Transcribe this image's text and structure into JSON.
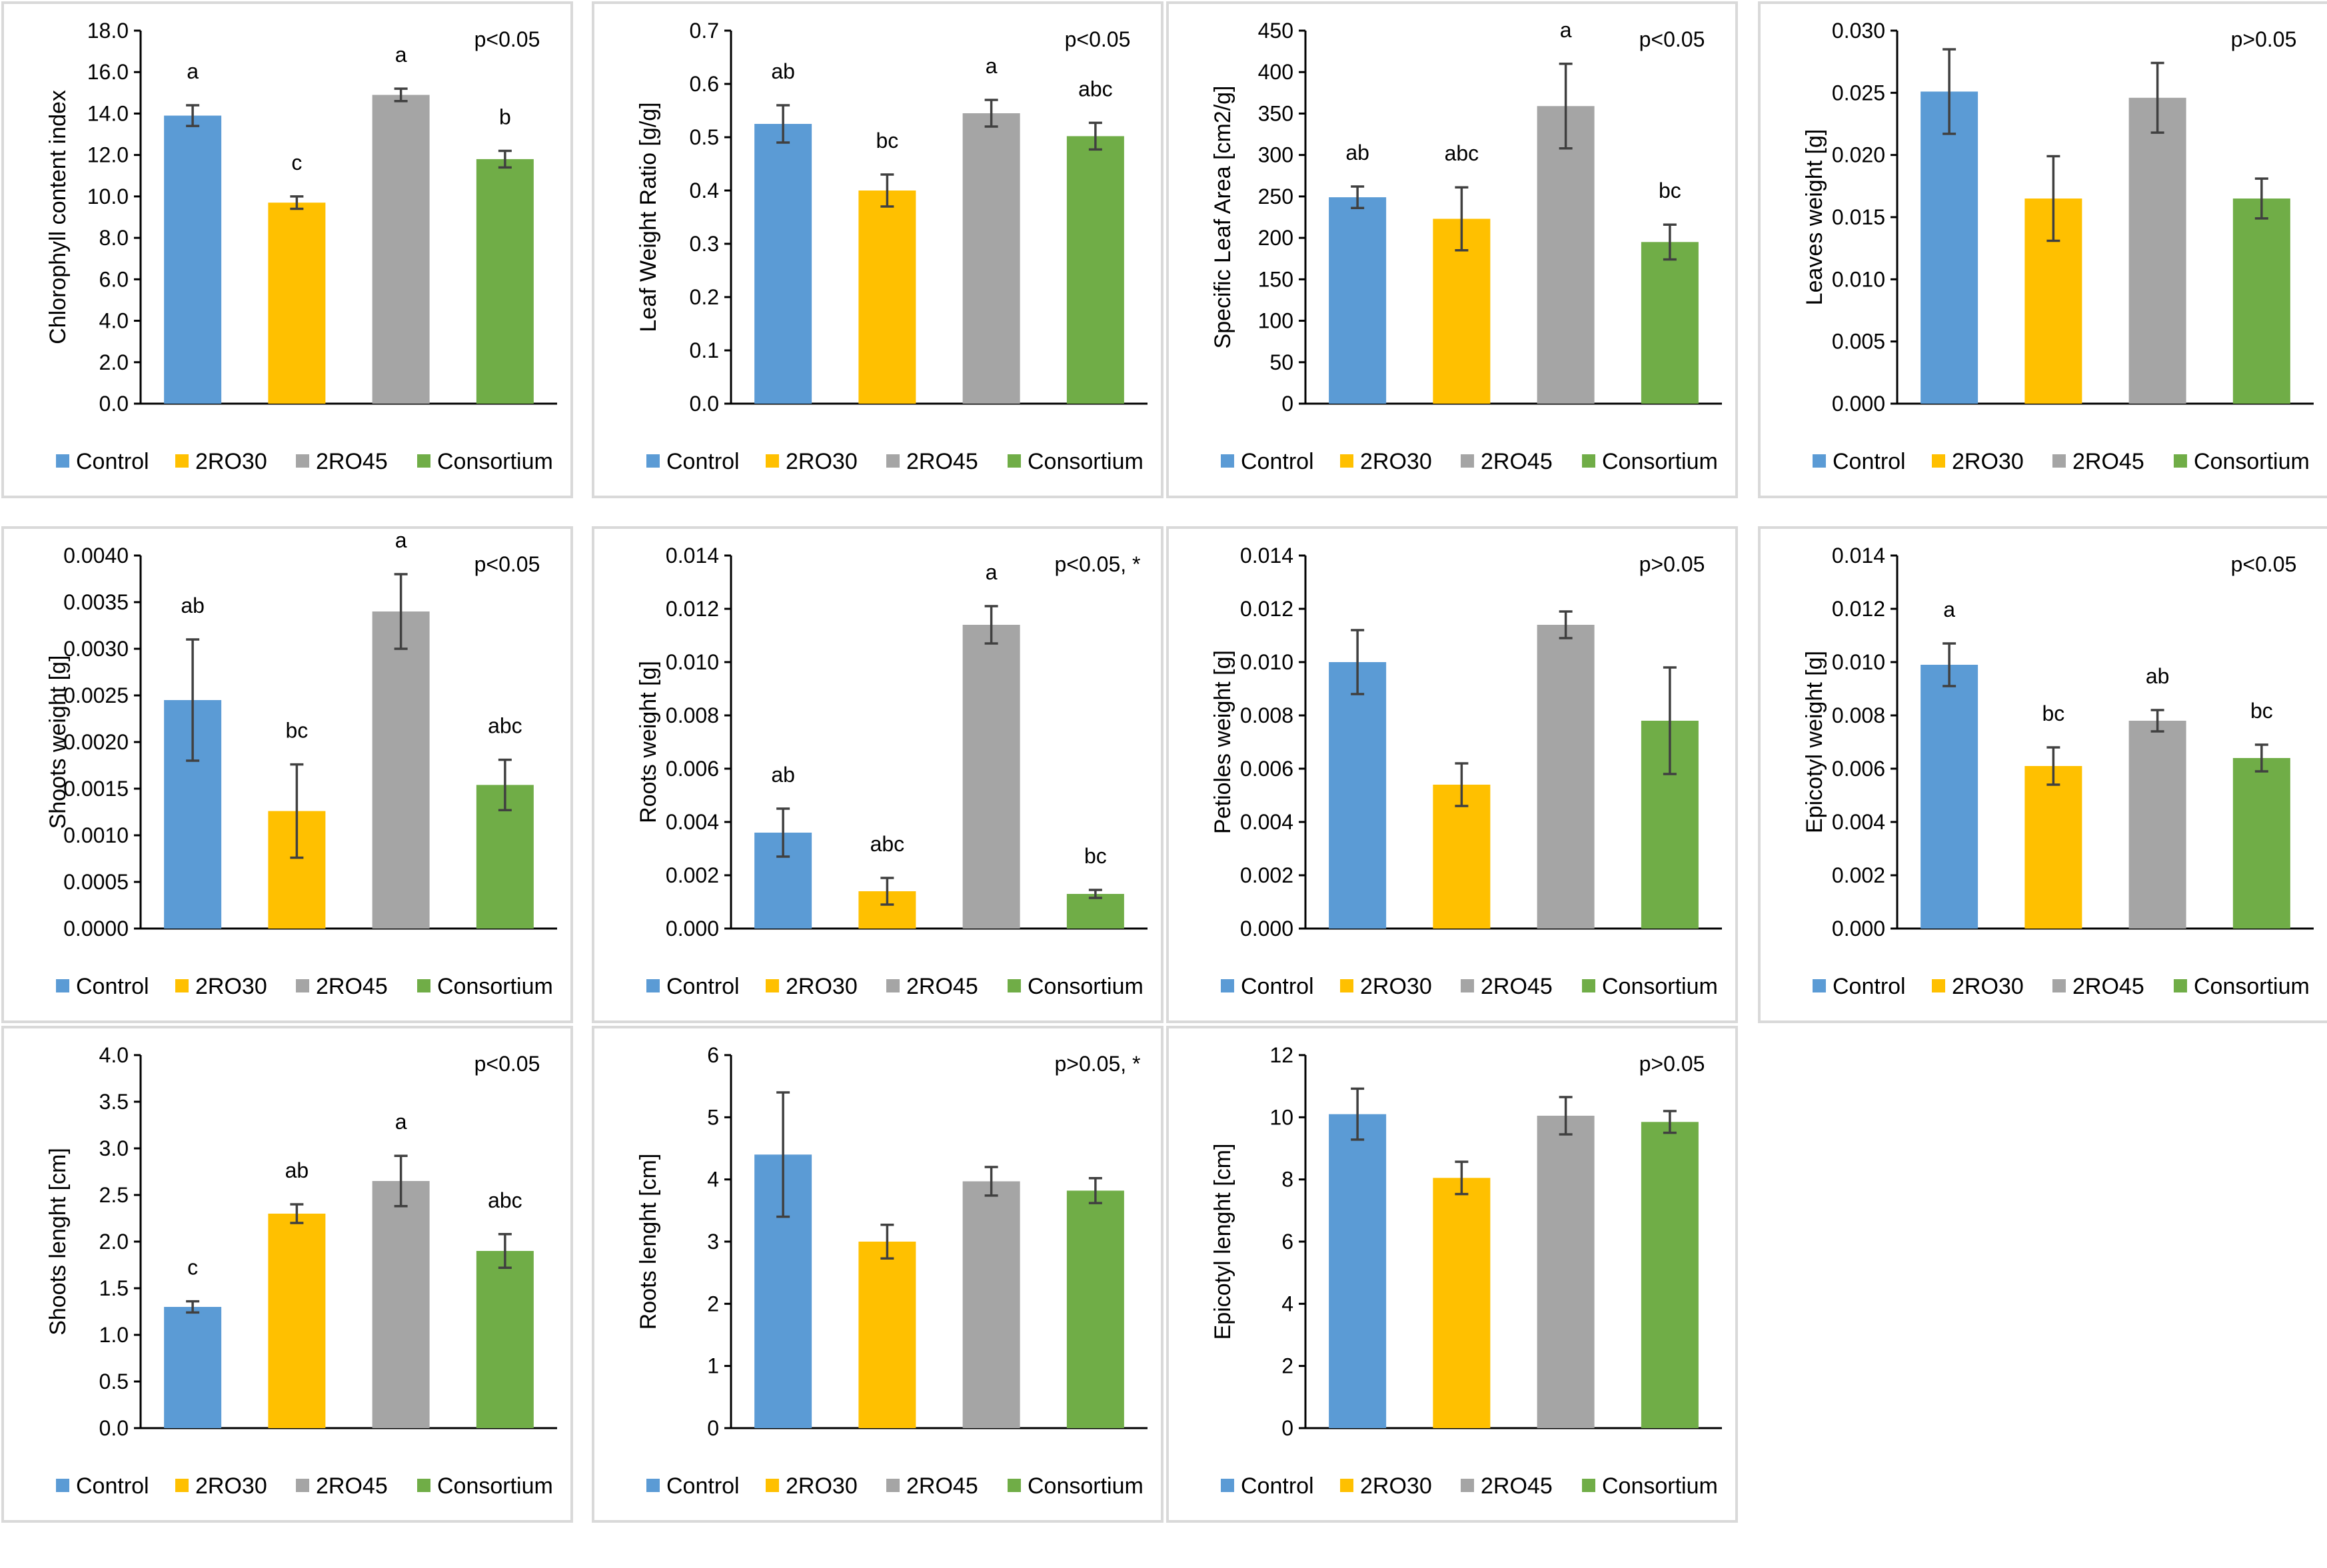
{
  "chart_data": [
    {
      "type": "bar",
      "categories": [
        "Control",
        "2RO30",
        "2RO45",
        "Consortium"
      ],
      "values": [
        13.9,
        9.7,
        14.9,
        11.8
      ],
      "errors": [
        0.5,
        0.3,
        0.3,
        0.4
      ],
      "letters": [
        "a",
        "c",
        "a",
        "b"
      ],
      "ylabel": "Chlorophyll content index",
      "significance": "p<0.05",
      "ylim": [
        0,
        18
      ],
      "ticks": [
        "0.0",
        "2.0",
        "4.0",
        "6.0",
        "8.0",
        "10.0",
        "12.0",
        "14.0",
        "16.0",
        "18.0"
      ]
    },
    {
      "type": "bar",
      "categories": [
        "Control",
        "2RO30",
        "2RO45",
        "Consortium"
      ],
      "values": [
        0.525,
        0.4,
        0.545,
        0.502
      ],
      "errors": [
        0.035,
        0.03,
        0.025,
        0.025
      ],
      "letters": [
        "ab",
        "bc",
        "a",
        "abc"
      ],
      "ylabel": "Leaf Weight Ratio [g/g]",
      "significance": "p<0.05",
      "ylim": [
        0,
        0.7
      ],
      "ticks": [
        "0.0",
        "0.1",
        "0.2",
        "0.3",
        "0.4",
        "0.5",
        "0.6",
        "0.7"
      ]
    },
    {
      "type": "bar",
      "categories": [
        "Control",
        "2RO30",
        "2RO45",
        "Consortium"
      ],
      "values": [
        249,
        223,
        359,
        195
      ],
      "errors": [
        13,
        38,
        51,
        21
      ],
      "letters": [
        "ab",
        "abc",
        "a",
        "bc"
      ],
      "ylabel": "Specific Leaf Area [cm2/g]",
      "significance": "p<0.05",
      "ylim": [
        0,
        450
      ],
      "ticks": [
        "0",
        "50",
        "100",
        "150",
        "200",
        "250",
        "300",
        "350",
        "400",
        "450"
      ]
    },
    {
      "type": "bar",
      "categories": [
        "Control",
        "2RO30",
        "2RO45",
        "Consortium"
      ],
      "values": [
        0.0251,
        0.0165,
        0.0246,
        0.0165
      ],
      "errors": [
        0.0034,
        0.0034,
        0.0028,
        0.0016
      ],
      "letters": [
        "",
        "",
        "",
        ""
      ],
      "ylabel": "Leaves weight [g]",
      "significance": "p>0.05",
      "ylim": [
        0,
        0.03
      ],
      "ticks": [
        "0.000",
        "0.005",
        "0.010",
        "0.015",
        "0.020",
        "0.025",
        "0.030"
      ]
    },
    {
      "type": "bar",
      "categories": [
        "Control",
        "2RO30",
        "2RO45",
        "Consortium"
      ],
      "values": [
        0.00245,
        0.00126,
        0.0034,
        0.00154
      ],
      "errors": [
        0.00065,
        0.0005,
        0.0004,
        0.00027
      ],
      "letters": [
        "ab",
        "bc",
        "a",
        "abc"
      ],
      "ylabel": "Shoots weight [g]",
      "significance": "p<0.05",
      "ylim": [
        0,
        0.004
      ],
      "ticks": [
        "0.0000",
        "0.0005",
        "0.0010",
        "0.0015",
        "0.0020",
        "0.0025",
        "0.0030",
        "0.0035",
        "0.0040"
      ]
    },
    {
      "type": "bar",
      "categories": [
        "Control",
        "2RO30",
        "2RO45",
        "Consortium"
      ],
      "values": [
        0.0036,
        0.0014,
        0.0114,
        0.0013
      ],
      "errors": [
        0.0009,
        0.0005,
        0.0007,
        0.00015
      ],
      "letters": [
        "ab",
        "abc",
        "a",
        "bc"
      ],
      "ylabel": "Roots weight [g]",
      "significance": "p<0.05, *",
      "ylim": [
        0,
        0.014
      ],
      "ticks": [
        "0.000",
        "0.002",
        "0.004",
        "0.006",
        "0.008",
        "0.010",
        "0.012",
        "0.014"
      ]
    },
    {
      "type": "bar",
      "categories": [
        "Control",
        "2RO30",
        "2RO45",
        "Consortium"
      ],
      "values": [
        0.01,
        0.0054,
        0.0114,
        0.0078
      ],
      "errors": [
        0.0012,
        0.0008,
        0.0005,
        0.002
      ],
      "letters": [
        "",
        "",
        "",
        ""
      ],
      "ylabel": "Petioles weight [g]",
      "significance": "p>0.05",
      "ylim": [
        0,
        0.014
      ],
      "ticks": [
        "0.000",
        "0.002",
        "0.004",
        "0.006",
        "0.008",
        "0.010",
        "0.012",
        "0.014"
      ]
    },
    {
      "type": "bar",
      "categories": [
        "Control",
        "2RO30",
        "2RO45",
        "Consortium"
      ],
      "values": [
        0.0099,
        0.0061,
        0.0078,
        0.0064
      ],
      "errors": [
        0.0008,
        0.0007,
        0.0004,
        0.0005
      ],
      "letters": [
        "a",
        "bc",
        "ab",
        "bc"
      ],
      "ylabel": "Epicotyl weight [g]",
      "significance": "p<0.05",
      "ylim": [
        0,
        0.014
      ],
      "ticks": [
        "0.000",
        "0.002",
        "0.004",
        "0.006",
        "0.008",
        "0.010",
        "0.012",
        "0.014"
      ]
    },
    {
      "type": "bar",
      "categories": [
        "Control",
        "2RO30",
        "2RO45",
        "Consortium"
      ],
      "values": [
        1.3,
        2.3,
        2.65,
        1.9
      ],
      "errors": [
        0.06,
        0.1,
        0.27,
        0.18
      ],
      "letters": [
        "c",
        "ab",
        "a",
        "abc"
      ],
      "ylabel": "Shoots lenght [cm]",
      "significance": "p<0.05",
      "ylim": [
        0,
        4
      ],
      "ticks": [
        "0.0",
        "0.5",
        "1.0",
        "1.5",
        "2.0",
        "2.5",
        "3.0",
        "3.5",
        "4.0"
      ]
    },
    {
      "type": "bar",
      "categories": [
        "Control",
        "2RO30",
        "2RO45",
        "Consortium"
      ],
      "values": [
        4.4,
        3.0,
        3.97,
        3.82
      ],
      "errors": [
        1.0,
        0.27,
        0.23,
        0.2
      ],
      "letters": [
        "",
        "",
        "",
        ""
      ],
      "ylabel": "Roots lenght [cm]",
      "significance": "p>0.05, *",
      "ylim": [
        0,
        6
      ],
      "ticks": [
        "0",
        "1",
        "2",
        "3",
        "4",
        "5",
        "6"
      ]
    },
    {
      "type": "bar",
      "categories": [
        "Control",
        "2RO30",
        "2RO45",
        "Consortium"
      ],
      "values": [
        10.1,
        8.05,
        10.05,
        9.85
      ],
      "errors": [
        0.82,
        0.52,
        0.6,
        0.35
      ],
      "letters": [
        "",
        "",
        "",
        ""
      ],
      "ylabel": "Epicotyl lenght [cm]",
      "significance": "p>0.05",
      "ylim": [
        0,
        12
      ],
      "ticks": [
        "0",
        "2",
        "4",
        "6",
        "8",
        "10",
        "12"
      ]
    }
  ],
  "legend": [
    "Control",
    "2RO30",
    "2RO45",
    "Consortium"
  ],
  "colors": {
    "Control": "#5b9bd5",
    "2RO30": "#ffc000",
    "2RO45": "#a5a5a5",
    "Consortium": "#70ad47"
  }
}
